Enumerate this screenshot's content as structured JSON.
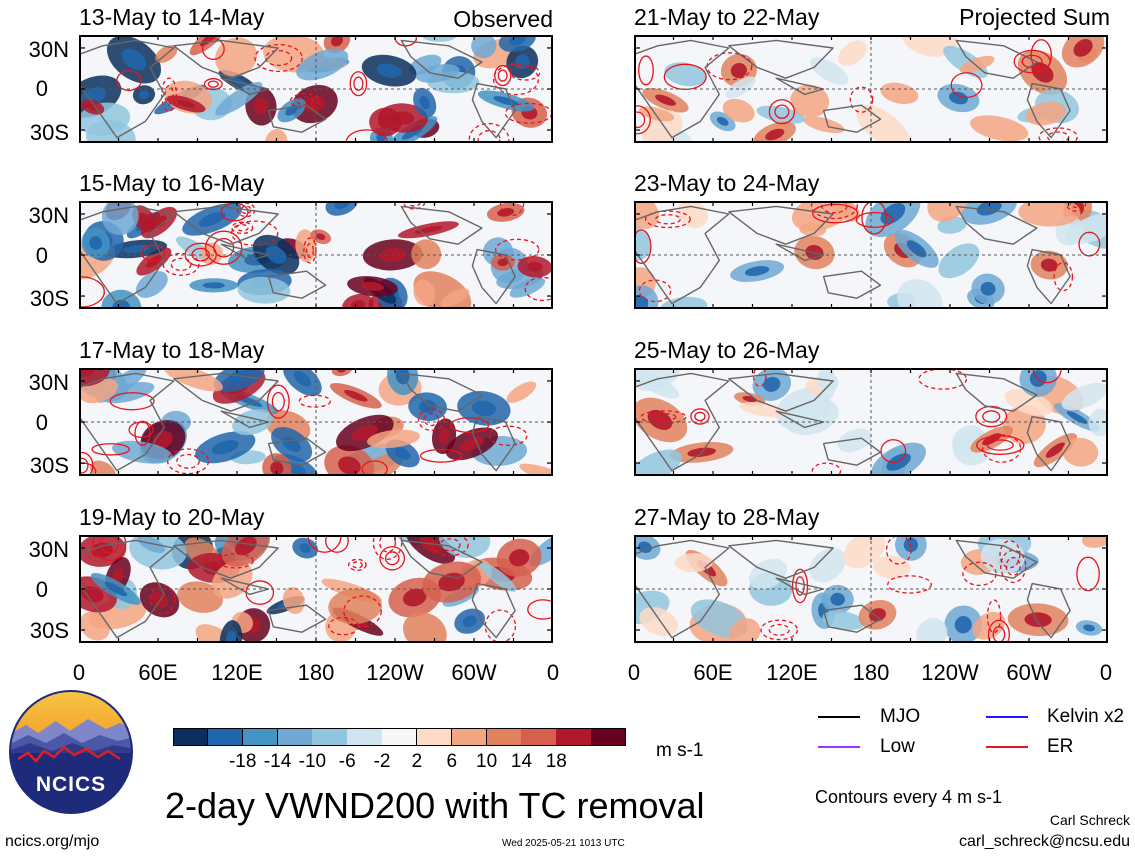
{
  "panels": [
    {
      "title": "13-May to 14-May",
      "corner": "Observed",
      "seed": 3
    },
    {
      "title": "15-May to 16-May",
      "corner": "",
      "seed": 7
    },
    {
      "title": "17-May to 18-May",
      "corner": "",
      "seed": 11
    },
    {
      "title": "19-May to 20-May",
      "corner": "",
      "seed": 19
    },
    {
      "title": "21-May to 22-May",
      "corner": "Projected Sum",
      "seed": 23
    },
    {
      "title": "23-May to 24-May",
      "corner": "",
      "seed": 29
    },
    {
      "title": "25-May to 26-May",
      "corner": "",
      "seed": 31
    },
    {
      "title": "27-May to 28-May",
      "corner": "",
      "seed": 37
    }
  ],
  "lat_labels": [
    "30N",
    "0",
    "30S"
  ],
  "lon_labels": [
    "0",
    "60E",
    "120E",
    "180",
    "120W",
    "60W",
    "0"
  ],
  "colorbar": {
    "colors": [
      "#0b2f5e",
      "#2166ac",
      "#4393c3",
      "#6fa8d3",
      "#92c5de",
      "#d1e5f0",
      "#f7f7f7",
      "#fddbc7",
      "#f4a582",
      "#e0825d",
      "#d6604d",
      "#b2182b",
      "#67001f"
    ],
    "labels": [
      "-18",
      "-14",
      "-10",
      "-6",
      "-2",
      "2",
      "6",
      "10",
      "14",
      "18"
    ],
    "units": "m s-1"
  },
  "main_title": "2-day VWND200 with TC removal",
  "legend": [
    {
      "label": "MJO",
      "color": "#000000"
    },
    {
      "label": "Kelvin x2",
      "color": "#1a1aff"
    },
    {
      "label": "Low",
      "color": "#9933ff"
    },
    {
      "label": "ER",
      "color": "#e8141c"
    }
  ],
  "contours_note": "Contours every 4 m s-1",
  "author": "Carl Schreck",
  "email": "carl_schreck@ncsu.edu",
  "website": "ncics.org/mjo",
  "timestamp": "Wed 2025-05-21 1013 UTC",
  "logo_text": "NCICS"
}
